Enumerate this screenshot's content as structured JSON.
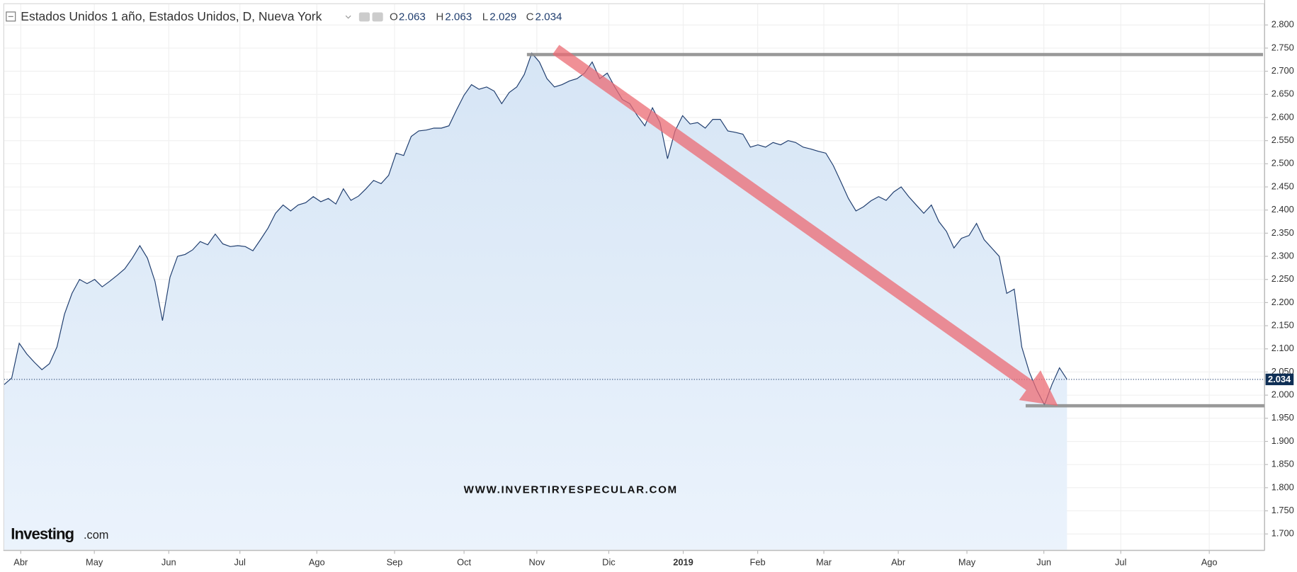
{
  "chart_data": {
    "type": "line",
    "title": "Estados Unidos 1 año, Estados Unidos, D, Nueva York",
    "ohlc": [
      {
        "label": "O",
        "value": 2.063
      },
      {
        "label": "H",
        "value": 2.063
      },
      {
        "label": "L",
        "value": 2.029
      },
      {
        "label": "C",
        "value": 2.034
      }
    ],
    "x_labels": [
      "Abr",
      "May",
      "Jun",
      "Jul",
      "Ago",
      "Sep",
      "Oct",
      "Nov",
      "Dic",
      "2019",
      "Feb",
      "Mar",
      "Abr",
      "May",
      "Jun",
      "Jul",
      "Ago"
    ],
    "series": [
      {
        "color": "#1f3d6e",
        "values": [
          2.023,
          2.037,
          2.112,
          2.089,
          2.071,
          2.055,
          2.068,
          2.104,
          2.175,
          2.22,
          2.25,
          2.241,
          2.25,
          2.234,
          2.246,
          2.259,
          2.273,
          2.296,
          2.323,
          2.296,
          2.246,
          2.161,
          2.255,
          2.3,
          2.304,
          2.314,
          2.332,
          2.325,
          2.348,
          2.327,
          2.321,
          2.323,
          2.321,
          2.312,
          2.336,
          2.361,
          2.393,
          2.411,
          2.398,
          2.411,
          2.416,
          2.429,
          2.418,
          2.425,
          2.413,
          2.446,
          2.421,
          2.43,
          2.446,
          2.464,
          2.457,
          2.475,
          2.523,
          2.518,
          2.559,
          2.571,
          2.573,
          2.577,
          2.577,
          2.582,
          2.616,
          2.648,
          2.671,
          2.661,
          2.666,
          2.657,
          2.63,
          2.654,
          2.666,
          2.693,
          2.739,
          2.72,
          2.684,
          2.666,
          2.671,
          2.679,
          2.684,
          2.696,
          2.72,
          2.684,
          2.696,
          2.666,
          2.639,
          2.63,
          2.604,
          2.582,
          2.621,
          2.589,
          2.511,
          2.571,
          2.604,
          2.586,
          2.589,
          2.577,
          2.596,
          2.596,
          2.571,
          2.568,
          2.564,
          2.536,
          2.541,
          2.536,
          2.546,
          2.541,
          2.55,
          2.546,
          2.536,
          2.532,
          2.527,
          2.523,
          2.496,
          2.461,
          2.425,
          2.398,
          2.407,
          2.42,
          2.429,
          2.421,
          2.439,
          2.45,
          2.429,
          2.411,
          2.393,
          2.411,
          2.375,
          2.354,
          2.318,
          2.339,
          2.345,
          2.371,
          2.336,
          2.318,
          2.3,
          2.22,
          2.229,
          2.104,
          2.05,
          2.011,
          1.979,
          2.023,
          2.059,
          2.034
        ]
      }
    ],
    "ylim": [
      1.666,
      2.845
    ],
    "yticks": [
      {
        "value": 1.7,
        "label": "1.700"
      },
      {
        "value": 1.75,
        "label": "1.750"
      },
      {
        "value": 1.8,
        "label": "1.800"
      },
      {
        "value": 1.85,
        "label": "1.850"
      },
      {
        "value": 1.9,
        "label": "1.900"
      },
      {
        "value": 1.95,
        "label": "1.950"
      },
      {
        "value": 2.0,
        "label": "2.000"
      },
      {
        "value": 2.05,
        "label": "2.050"
      },
      {
        "value": 2.1,
        "label": "2.100"
      },
      {
        "value": 2.15,
        "label": "2.150"
      },
      {
        "value": 2.2,
        "label": "2.200"
      },
      {
        "value": 2.25,
        "label": "2.250"
      },
      {
        "value": 2.3,
        "label": "2.300"
      },
      {
        "value": 2.35,
        "label": "2.350"
      },
      {
        "value": 2.4,
        "label": "2.400"
      },
      {
        "value": 2.45,
        "label": "2.450"
      },
      {
        "value": 2.5,
        "label": "2.500"
      },
      {
        "value": 2.55,
        "label": "2.550"
      },
      {
        "value": 2.6,
        "label": "2.600"
      },
      {
        "value": 2.65,
        "label": "2.650"
      },
      {
        "value": 2.7,
        "label": "2.700"
      },
      {
        "value": 2.75,
        "label": "2.750"
      },
      {
        "value": 2.8,
        "label": "2.800"
      }
    ],
    "grid": true,
    "levels": [
      {
        "value": 2.736
      },
      {
        "value": 1.977
      }
    ],
    "watermark": "WWW.INVERTIRYESPECULAR.COM",
    "logo": {
      "brand": "Investing",
      "suffix": ".com"
    }
  }
}
